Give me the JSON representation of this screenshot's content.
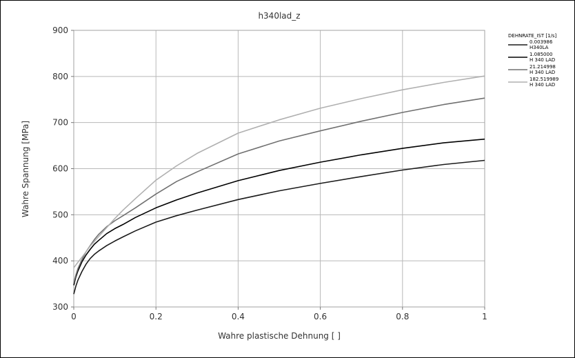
{
  "chart_data": {
    "type": "line",
    "title": "h340lad_z",
    "xlabel": "Wahre plastische Dehnung [ ]",
    "ylabel": "Wahre Spannung [MPa]",
    "xlim": [
      0,
      1
    ],
    "ylim": [
      300,
      900
    ],
    "xticks": [
      "0",
      "0.2",
      "0.4",
      "0.6",
      "0.8",
      "1"
    ],
    "yticks": [
      "300",
      "400",
      "500",
      "600",
      "700",
      "800",
      "900"
    ],
    "grid": true,
    "legend_title": "DEHNRATE_IST [1/s]",
    "legend_position": "right",
    "series": [
      {
        "name": "0.003986",
        "sublabel": "H340LA",
        "color": "#1a1a1a",
        "x": [
          0,
          0.005,
          0.01,
          0.02,
          0.03,
          0.04,
          0.05,
          0.06,
          0.08,
          0.1,
          0.12,
          0.15,
          0.2,
          0.25,
          0.3,
          0.4,
          0.5,
          0.6,
          0.7,
          0.8,
          0.9,
          1.0
        ],
        "y": [
          328,
          345,
          358,
          377,
          393,
          405,
          414,
          421,
          433,
          443,
          452,
          465,
          484,
          498,
          510,
          533,
          552,
          568,
          583,
          597,
          609,
          618
        ]
      },
      {
        "name": "1.085000",
        "sublabel": "H 340 LAD",
        "color": "#000000",
        "x": [
          0,
          0.005,
          0.01,
          0.02,
          0.03,
          0.04,
          0.05,
          0.06,
          0.08,
          0.1,
          0.12,
          0.15,
          0.2,
          0.25,
          0.3,
          0.4,
          0.5,
          0.6,
          0.7,
          0.8,
          0.9,
          1.0
        ],
        "y": [
          347,
          365,
          378,
          398,
          413,
          425,
          436,
          444,
          459,
          470,
          479,
          494,
          515,
          532,
          547,
          574,
          596,
          614,
          630,
          644,
          656,
          664
        ]
      },
      {
        "name": "21.214998",
        "sublabel": "H 340 LAD",
        "color": "#707070",
        "x": [
          0,
          0.005,
          0.01,
          0.02,
          0.03,
          0.04,
          0.05,
          0.06,
          0.08,
          0.1,
          0.12,
          0.15,
          0.2,
          0.25,
          0.3,
          0.4,
          0.5,
          0.6,
          0.7,
          0.8,
          0.9,
          1.0
        ],
        "y": [
          352,
          369,
          383,
          403,
          420,
          433,
          446,
          457,
          474,
          487,
          498,
          515,
          545,
          572,
          593,
          632,
          660,
          682,
          703,
          722,
          739,
          753
        ]
      },
      {
        "name": "182.519989",
        "sublabel": "H 340 LAD",
        "color": "#b0b0b0",
        "x": [
          0,
          0.01,
          0.02,
          0.03,
          0.04,
          0.06,
          0.08,
          0.1,
          0.12,
          0.15,
          0.2,
          0.25,
          0.3,
          0.4,
          0.5,
          0.6,
          0.7,
          0.8,
          0.9,
          1.0
        ],
        "y": [
          385,
          397,
          408,
          420,
          432,
          452,
          472,
          492,
          510,
          535,
          575,
          606,
          633,
          677,
          706,
          731,
          752,
          771,
          787,
          801
        ]
      }
    ]
  }
}
